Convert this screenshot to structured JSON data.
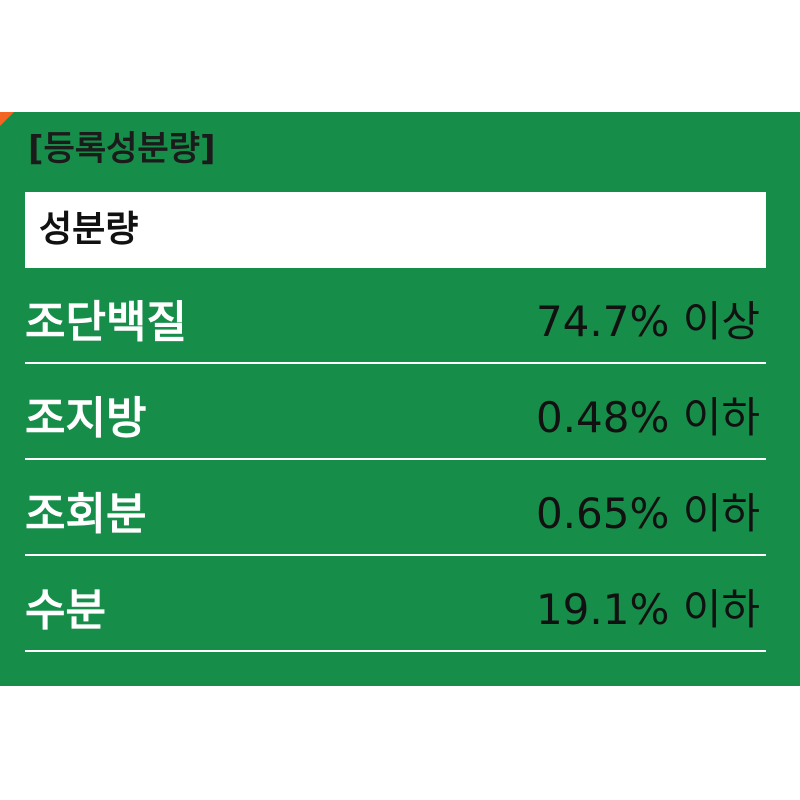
{
  "header": {
    "title": "[등록성분량]"
  },
  "table": {
    "heading": "성분량",
    "rows": [
      {
        "name": "조단백질",
        "value": "74.7% 이상"
      },
      {
        "name": "조지방",
        "value": "0.48% 이하"
      },
      {
        "name": "조회분",
        "value": "0.65% 이하"
      },
      {
        "name": "수분",
        "value": "19.1% 이하"
      }
    ]
  },
  "colors": {
    "panel": "#178d4a",
    "accent": "#f26522",
    "text_dark": "#111111",
    "text_light": "#ffffff"
  }
}
